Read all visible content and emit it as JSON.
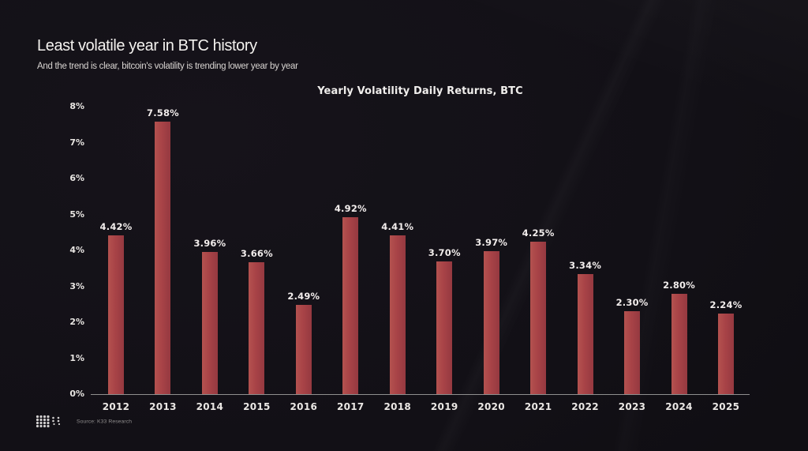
{
  "header": {
    "title": "Least volatile year in BTC history",
    "subtitle": "And the trend is clear, bitcoin's volatility is trending lower year by year"
  },
  "chart_data": {
    "type": "bar",
    "title": "Yearly Volatility Daily Returns, BTC",
    "categories": [
      "2012",
      "2013",
      "2014",
      "2015",
      "2016",
      "2017",
      "2018",
      "2019",
      "2020",
      "2021",
      "2022",
      "2023",
      "2024",
      "2025"
    ],
    "values": [
      4.42,
      7.58,
      3.96,
      3.66,
      2.49,
      4.92,
      4.41,
      3.7,
      3.97,
      4.25,
      3.34,
      2.3,
      2.8,
      2.24
    ],
    "labels": [
      "4.42%",
      "7.58%",
      "3.96%",
      "3.66%",
      "2.49%",
      "4.92%",
      "4.41%",
      "3.70%",
      "3.97%",
      "4.25%",
      "3.34%",
      "2.30%",
      "2.80%",
      "2.24%"
    ],
    "xlabel": "",
    "ylabel": "",
    "ylim": [
      0,
      8
    ],
    "y_ticks": [
      "0%",
      "1%",
      "2%",
      "3%",
      "4%",
      "5%",
      "6%",
      "7%",
      "8%"
    ],
    "grid": false,
    "legend": null,
    "bar_color": "#a84347"
  },
  "footer": {
    "source": "Source: K33 Research",
    "logo_icon": "k33-dot-matrix-logo"
  },
  "colors": {
    "background": "#121016",
    "bar": "#a84347",
    "axis_line": "#8f8f8f",
    "text_primary": "#f4f2ef",
    "text_secondary": "#d8d4d1"
  }
}
